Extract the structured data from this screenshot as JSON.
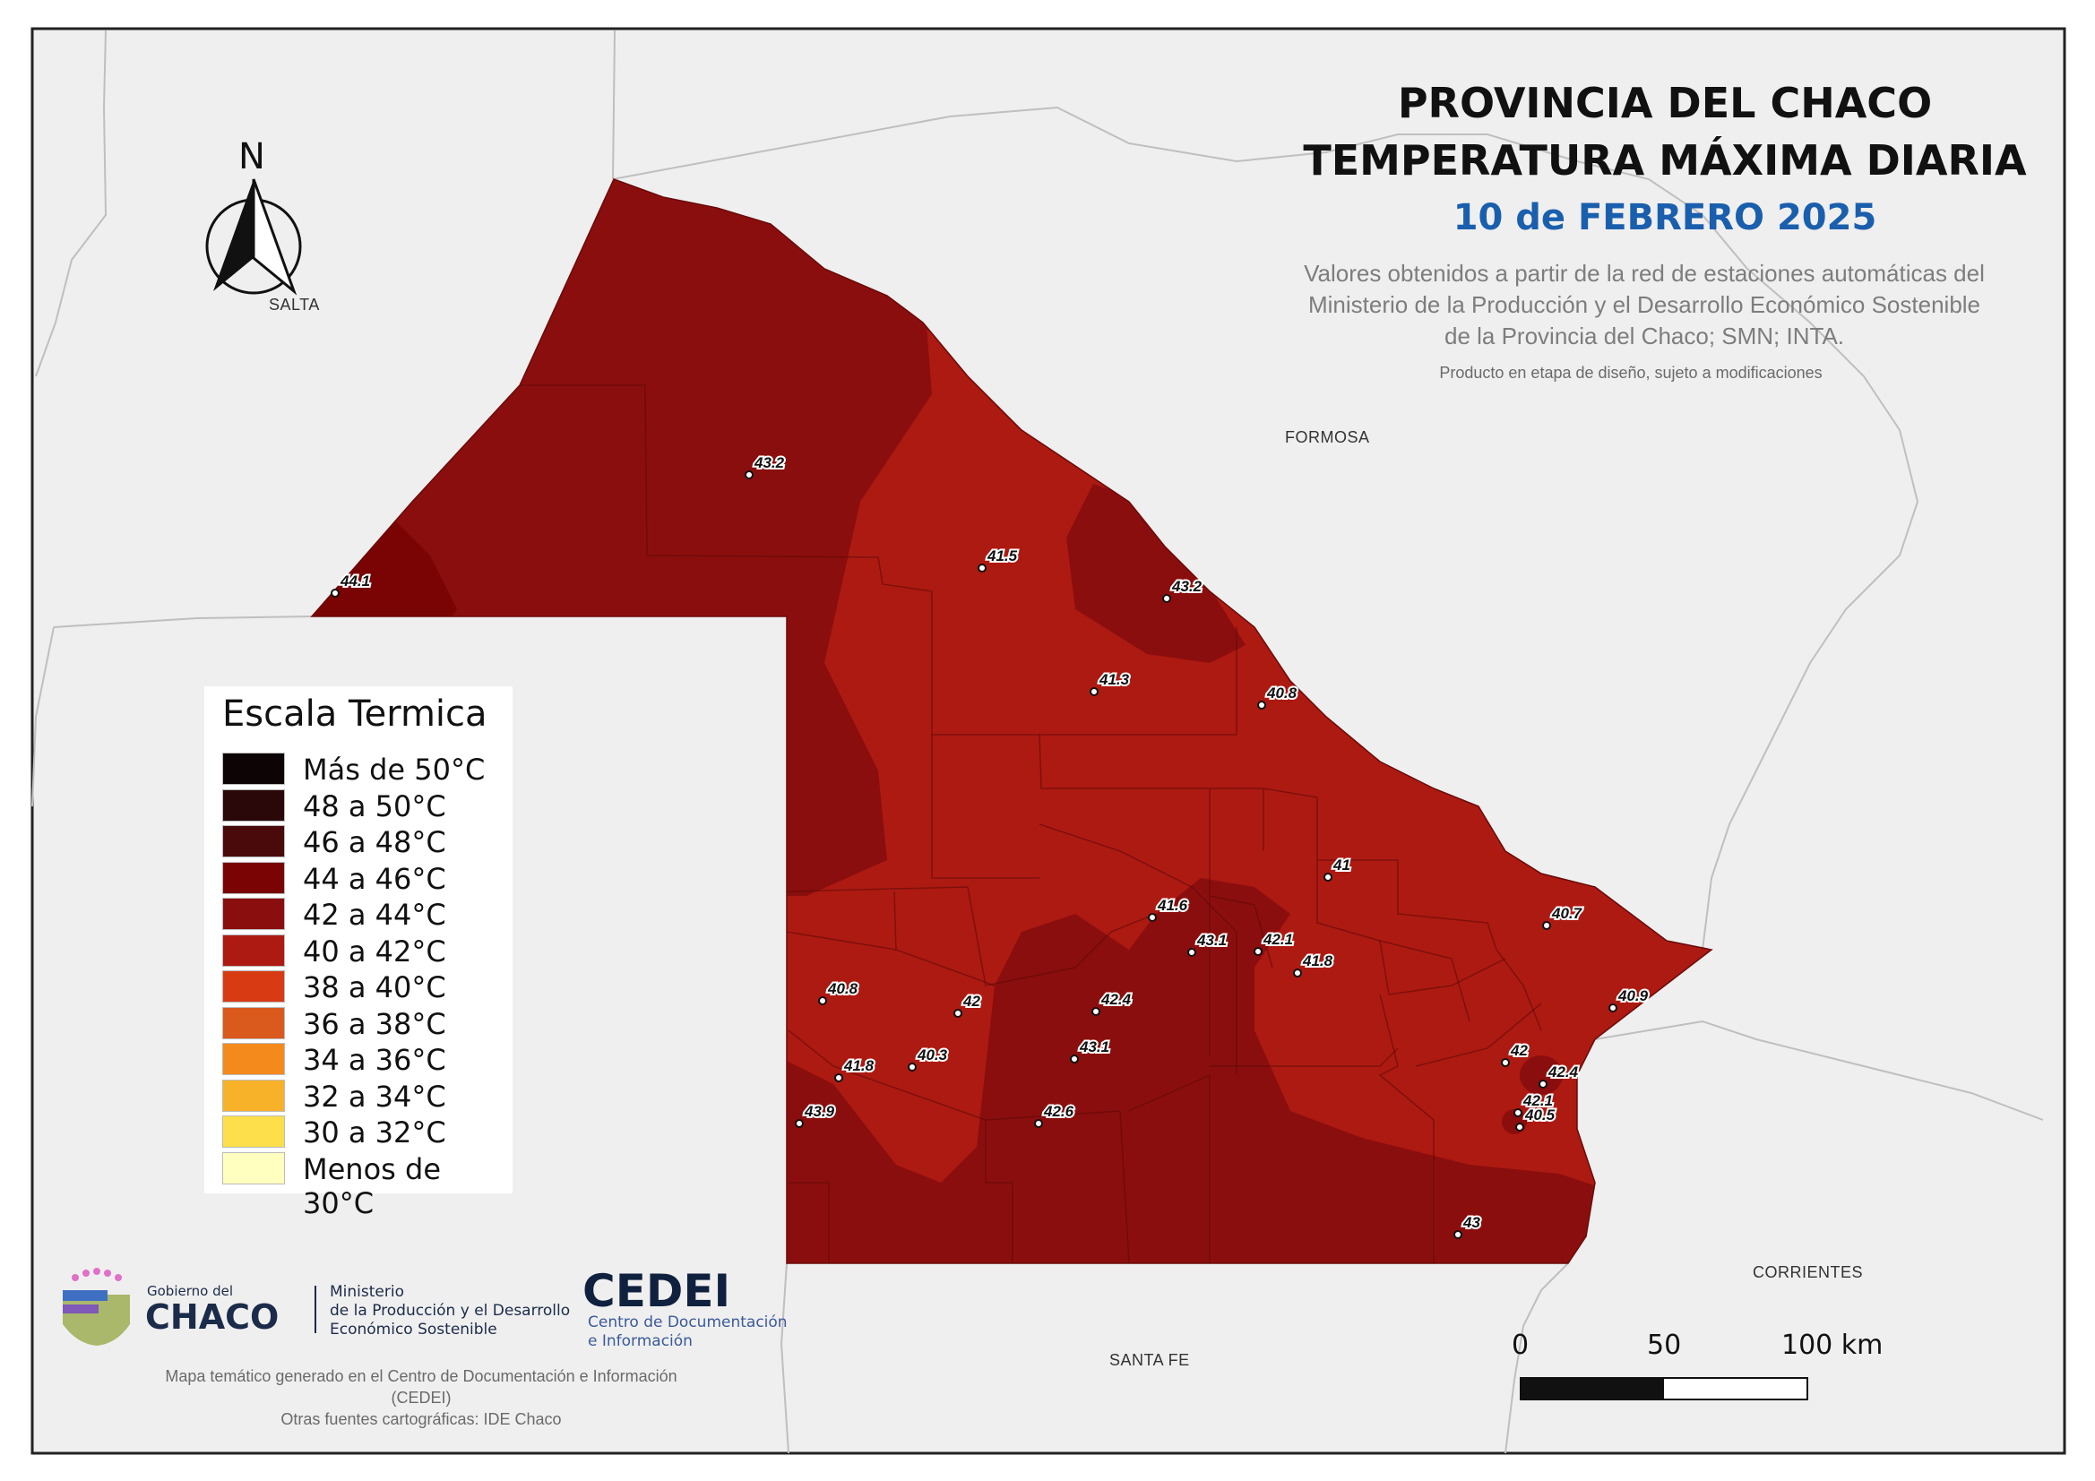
{
  "title": {
    "line1": "PROVINCIA DEL CHACO",
    "line2": "TEMPERATURA MÁXIMA DIARIA",
    "date": "10 de FEBRERO 2025"
  },
  "source": {
    "line1": "Valores obtenidos a partir de la red de estaciones automáticas del",
    "line2": "Ministerio de la Producción y el Desarrollo Económico Sostenible",
    "line3": "de la Provincia del Chaco; SMN; INTA.",
    "note": "Producto en etapa de diseño, sujeto a modificaciones"
  },
  "places": {
    "salta": "SALTA",
    "formosa": "FORMOSA",
    "corrientes": "CORRIENTES",
    "santa_fe": "SANTA FE"
  },
  "north_label": "N",
  "legend": {
    "title": "Escala Termica",
    "items": [
      {
        "label": "Más de 50°C",
        "color": "#0d0406"
      },
      {
        "label": "48 a 50°C",
        "color": "#2a0708"
      },
      {
        "label": "46 a 48°C",
        "color": "#4a090b"
      },
      {
        "label": "44 a 46°C",
        "color": "#7a0404"
      },
      {
        "label": "42 a 44°C",
        "color": "#8b0e0e"
      },
      {
        "label": "40 a 42°C",
        "color": "#ad1a12"
      },
      {
        "label": "38 a 40°C",
        "color": "#d83a14"
      },
      {
        "label": "36 a 38°C",
        "color": "#d95a1c"
      },
      {
        "label": "34 a 36°C",
        "color": "#f48a1c"
      },
      {
        "label": "32 a 34°C",
        "color": "#f7b22a"
      },
      {
        "label": "30 a 32°C",
        "color": "#fcdf4a"
      },
      {
        "label": "Menos de 30°C",
        "color": "#ffffc0"
      }
    ]
  },
  "stations": [
    {
      "value": "43.2"
    },
    {
      "value": "44.1"
    },
    {
      "value": "41.5"
    },
    {
      "value": "43.2"
    },
    {
      "value": "41.3"
    },
    {
      "value": "40.8"
    },
    {
      "value": "41"
    },
    {
      "value": "40.7"
    },
    {
      "value": "41.6"
    },
    {
      "value": "43.1"
    },
    {
      "value": "42.1"
    },
    {
      "value": "41.8"
    },
    {
      "value": "40.9"
    },
    {
      "value": "40.8"
    },
    {
      "value": "42"
    },
    {
      "value": "42.4"
    },
    {
      "value": "43.1"
    },
    {
      "value": "41.8"
    },
    {
      "value": "40.3"
    },
    {
      "value": "42"
    },
    {
      "value": "42.4"
    },
    {
      "value": "43.9"
    },
    {
      "value": "42.6"
    },
    {
      "value": "42.1"
    },
    {
      "value": "40.5"
    },
    {
      "value": "43"
    }
  ],
  "scale_bar": {
    "label_0": "0",
    "label_50": "50",
    "label_100": "100 km"
  },
  "logos": {
    "gobierno_small": "Gobierno del",
    "gobierno_big": "CHACO",
    "ministerio_1": "Ministerio",
    "ministerio_2": "de la Producción y el Desarrollo",
    "ministerio_3": "Económico Sostenible",
    "cedei": "CEDEI",
    "cedei_sub1": "Centro de Documentación",
    "cedei_sub2": "e Información"
  },
  "credit": {
    "line1": "Mapa temático generado en el Centro de Documentación e Información",
    "line2": "(CEDEI)",
    "line3": "Otras fuentes cartográficas: IDE Chaco"
  },
  "colors": {
    "background": "#efefef",
    "zone_40_42": "#ad1a12",
    "zone_42_44": "#8b0e0e",
    "zone_44_46": "#7a0404",
    "zone_38_40": "#d83a14",
    "accent_date": "#1a5fad"
  }
}
